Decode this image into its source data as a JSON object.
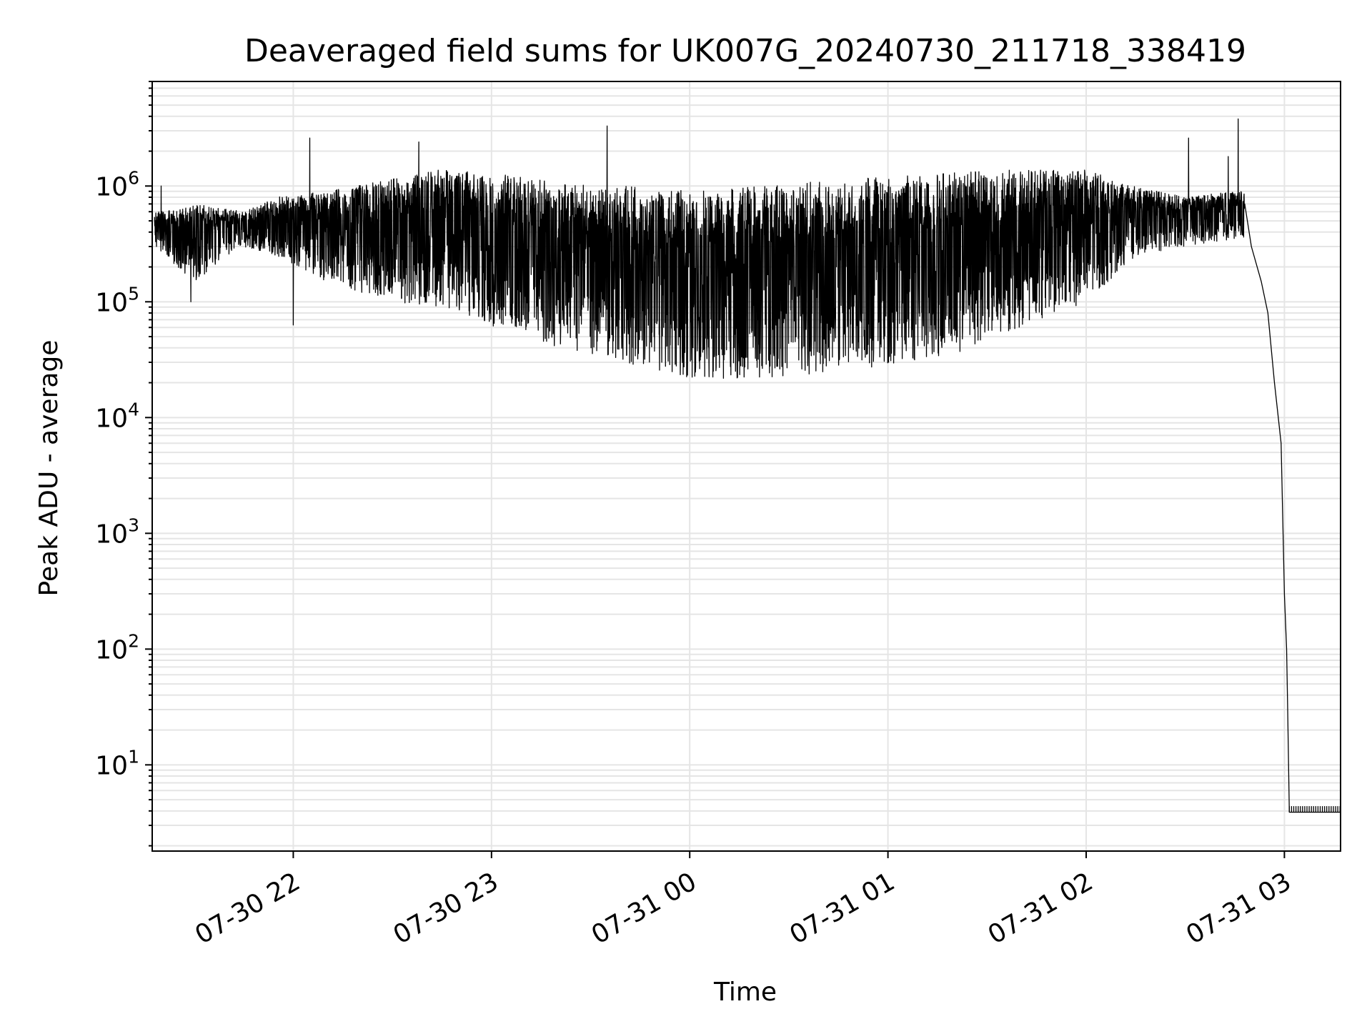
{
  "chart_data": {
    "type": "line",
    "title": "Deaveraged field sums for UK007G_20240730_211718_338419",
    "xlabel": "Time",
    "ylabel": "Peak ADU - average",
    "yscale": "log",
    "grid": true,
    "legend": "none",
    "line_color": "#000000",
    "grid_color": "#e5e5e5",
    "xlim": [
      "2024-07-30T21:17:18",
      "2024-07-31T03:17:00"
    ],
    "ylim": [
      1.8,
      8000000
    ],
    "x_ticks": [
      {
        "time": "2024-07-30T22:00:00",
        "label": "07-30 22"
      },
      {
        "time": "2024-07-30T23:00:00",
        "label": "07-30 23"
      },
      {
        "time": "2024-07-31T00:00:00",
        "label": "07-31 00"
      },
      {
        "time": "2024-07-31T01:00:00",
        "label": "07-31 01"
      },
      {
        "time": "2024-07-31T02:00:00",
        "label": "07-31 02"
      },
      {
        "time": "2024-07-31T03:00:00",
        "label": "07-31 03"
      }
    ],
    "y_ticks": [
      {
        "value": 10,
        "base": "10",
        "exp": "1"
      },
      {
        "value": 100,
        "base": "10",
        "exp": "2"
      },
      {
        "value": 1000,
        "base": "10",
        "exp": "3"
      },
      {
        "value": 10000,
        "base": "10",
        "exp": "4"
      },
      {
        "value": 100000,
        "base": "10",
        "exp": "5"
      },
      {
        "value": 1000000,
        "base": "10",
        "exp": "6"
      }
    ],
    "series": [
      {
        "points": [
          {
            "t": "2024-07-30T21:18:00",
            "upper": 600000,
            "lower": 300000
          },
          {
            "t": "2024-07-30T21:30:00",
            "upper": 700000,
            "lower": 150000
          },
          {
            "t": "2024-07-30T21:45:00",
            "upper": 600000,
            "lower": 300000
          },
          {
            "t": "2024-07-30T21:55:00",
            "upper": 800000,
            "lower": 250000
          },
          {
            "t": "2024-07-30T22:10:00",
            "upper": 900000,
            "lower": 150000
          },
          {
            "t": "2024-07-30T22:30:00",
            "upper": 1200000,
            "lower": 100000
          },
          {
            "t": "2024-07-30T22:45:00",
            "upper": 1400000,
            "lower": 90000
          },
          {
            "t": "2024-07-30T23:00:00",
            "upper": 1300000,
            "lower": 60000
          },
          {
            "t": "2024-07-30T23:20:00",
            "upper": 1100000,
            "lower": 40000
          },
          {
            "t": "2024-07-30T23:40:00",
            "upper": 1000000,
            "lower": 30000
          },
          {
            "t": "2024-07-31T00:00:00",
            "upper": 900000,
            "lower": 22000
          },
          {
            "t": "2024-07-31T00:20:00",
            "upper": 1000000,
            "lower": 21000
          },
          {
            "t": "2024-07-31T00:40:00",
            "upper": 1100000,
            "lower": 24000
          },
          {
            "t": "2024-07-31T01:00:00",
            "upper": 1200000,
            "lower": 28000
          },
          {
            "t": "2024-07-31T01:20:00",
            "upper": 1300000,
            "lower": 35000
          },
          {
            "t": "2024-07-31T01:40:00",
            "upper": 1400000,
            "lower": 60000
          },
          {
            "t": "2024-07-31T02:00:00",
            "upper": 1400000,
            "lower": 100000
          },
          {
            "t": "2024-07-31T02:15:00",
            "upper": 1000000,
            "lower": 250000
          },
          {
            "t": "2024-07-31T02:30:00",
            "upper": 800000,
            "lower": 300000
          },
          {
            "t": "2024-07-31T02:45:00",
            "upper": 900000,
            "lower": 350000
          }
        ],
        "spikes": [
          {
            "t": "2024-07-30T21:20:00",
            "value": 1000000
          },
          {
            "t": "2024-07-30T21:29:00",
            "value": 100000
          },
          {
            "t": "2024-07-30T22:00:00",
            "value": 63000
          },
          {
            "t": "2024-07-30T22:05:00",
            "value": 2600000
          },
          {
            "t": "2024-07-30T22:38:00",
            "value": 2400000
          },
          {
            "t": "2024-07-30T23:35:00",
            "value": 3300000
          },
          {
            "t": "2024-07-31T02:31:00",
            "value": 2600000
          },
          {
            "t": "2024-07-31T02:43:00",
            "value": 1800000
          },
          {
            "t": "2024-07-31T02:46:00",
            "value": 3800000
          },
          {
            "t": "2024-07-31T02:46:30",
            "value": 230000
          }
        ],
        "tail": [
          {
            "t": "2024-07-31T02:48:00",
            "value": 700000
          },
          {
            "t": "2024-07-31T02:50:00",
            "value": 300000
          },
          {
            "t": "2024-07-31T02:53:00",
            "value": 150000
          },
          {
            "t": "2024-07-31T02:55:00",
            "value": 80000
          },
          {
            "t": "2024-07-31T02:57:00",
            "value": 20000
          },
          {
            "t": "2024-07-31T02:59:00",
            "value": 6000
          },
          {
            "t": "2024-07-31T03:00:00",
            "value": 300
          },
          {
            "t": "2024-07-31T03:00:40",
            "value": 100
          },
          {
            "t": "2024-07-31T03:01:00",
            "value": 30
          },
          {
            "t": "2024-07-31T03:01:30",
            "value": 3.9
          },
          {
            "t": "2024-07-31T03:17:00",
            "value": 3.9
          }
        ],
        "floor": {
          "low": 3.9,
          "high": 4.4,
          "start": "2024-07-31T03:01:30",
          "end": "2024-07-31T03:17:00"
        }
      }
    ]
  }
}
